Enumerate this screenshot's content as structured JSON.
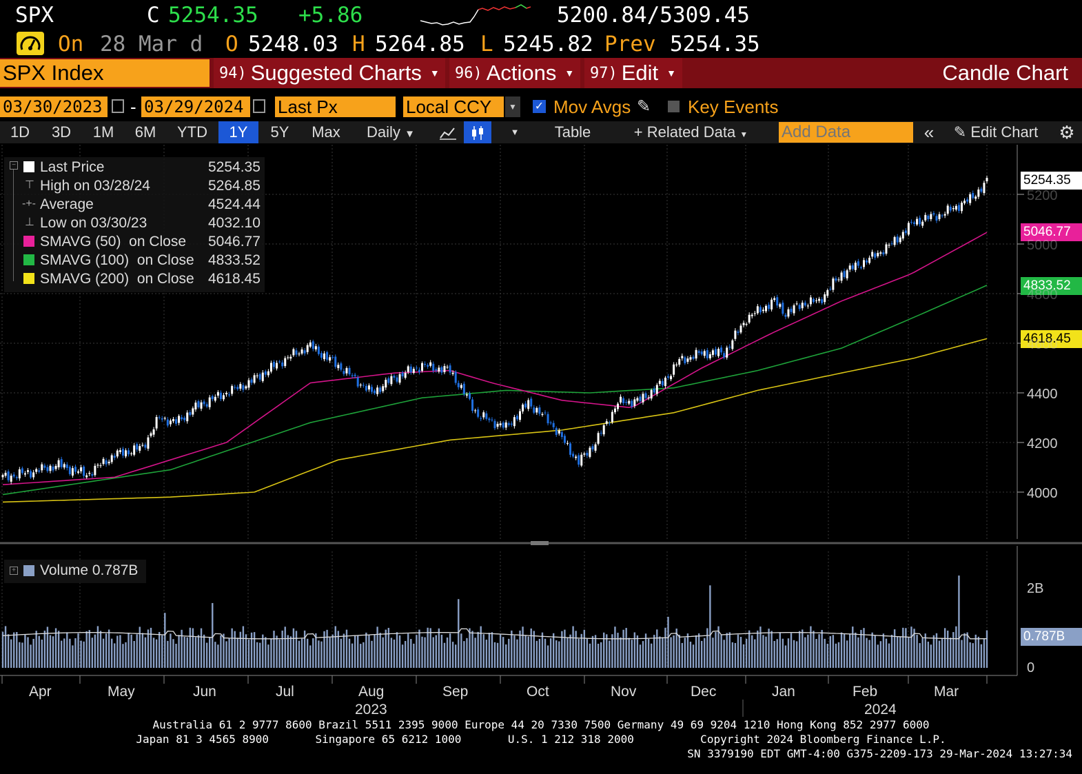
{
  "colors": {
    "up": "#ffffff",
    "down": "#1f6fe0",
    "sma50": "#d4148a",
    "sma100": "#1ea33a",
    "sma200": "#d9c414",
    "orange": "#f7a21b",
    "banner": "#7a0d14",
    "green": "#2ddf4b"
  },
  "header": {
    "ticker": "SPX",
    "c_label": "C",
    "price": "5254.35",
    "change": "+5.86",
    "range": "5200.84/5309.45",
    "line2": {
      "on": "On",
      "date": "28 Mar d",
      "o_label": "O",
      "o": "5248.03",
      "h_label": "H",
      "h": "5264.85",
      "l_label": "L",
      "l": "5245.82",
      "prev_label": "Prev",
      "prev": "5254.35"
    }
  },
  "menu": {
    "security": "SPX Index",
    "suggested_num": "94)",
    "suggested": "Suggested Charts",
    "actions_num": "96)",
    "actions": "Actions",
    "edit_num": "97)",
    "edit": "Edit",
    "chart_type": "Candle Chart"
  },
  "controls": {
    "start_date": "03/30/2023",
    "dash": "-",
    "end_date": "03/29/2024",
    "field": "Last Px",
    "currency": "Local CCY",
    "mov_avgs": "Mov Avgs",
    "key_events": "Key Events"
  },
  "toolbar": {
    "ranges": [
      "1D",
      "3D",
      "1M",
      "6M",
      "YTD",
      "1Y",
      "5Y",
      "Max"
    ],
    "selected": "1Y",
    "frequency": "Daily",
    "table": "Table",
    "related": "Related Data",
    "add_data_placeholder": "Add Data",
    "edit_chart": "Edit Chart"
  },
  "legend": [
    {
      "label": "Last Price",
      "value": "5254.35",
      "color": "#ffffff"
    },
    {
      "label": "High on 03/28/24",
      "value": "5264.85",
      "color": ""
    },
    {
      "label": "Average",
      "value": "4524.44",
      "color": ""
    },
    {
      "label": "Low on 03/30/23",
      "value": "4032.10",
      "color": ""
    },
    {
      "label": "SMAVG (50)  on Close",
      "value": "5046.77",
      "color": "#e8219a"
    },
    {
      "label": "SMAVG (100)  on Close",
      "value": "4833.52",
      "color": "#22b845"
    },
    {
      "label": "SMAVG (200)  on Close",
      "value": "4618.45",
      "color": "#f2e21a"
    }
  ],
  "volume_legend": "Volume 0.787B",
  "price_tags": {
    "last": "5254.35",
    "sma50": "5046.77",
    "sma100": "4833.52",
    "sma200": "4618.45",
    "volume": "0.787B"
  },
  "chart_data": {
    "type": "candlestick",
    "y_ticks": [
      "4000",
      "4200",
      "4400",
      "4600",
      "4800",
      "5000",
      "5200"
    ],
    "ylim": [
      3800,
      5380
    ],
    "volume_ticks": [
      "0",
      "2B"
    ],
    "volume_ylim": [
      0,
      2.8
    ],
    "x_months": [
      "Apr",
      "May",
      "Jun",
      "Jul",
      "Aug",
      "Sep",
      "Oct",
      "Nov",
      "Dec",
      "Jan",
      "Feb",
      "Mar"
    ],
    "x_years": [
      "2023",
      "2024"
    ],
    "close_anchors": [
      [
        0,
        4060
      ],
      [
        10,
        4080
      ],
      [
        20,
        4110
      ],
      [
        30,
        4070
      ],
      [
        40,
        4150
      ],
      [
        50,
        4180
      ],
      [
        56,
        4300
      ],
      [
        62,
        4280
      ],
      [
        70,
        4350
      ],
      [
        80,
        4400
      ],
      [
        88,
        4440
      ],
      [
        100,
        4530
      ],
      [
        110,
        4590
      ],
      [
        120,
        4510
      ],
      [
        132,
        4400
      ],
      [
        140,
        4460
      ],
      [
        150,
        4510
      ],
      [
        160,
        4490
      ],
      [
        170,
        4310
      ],
      [
        180,
        4260
      ],
      [
        188,
        4360
      ],
      [
        196,
        4280
      ],
      [
        206,
        4120
      ],
      [
        212,
        4200
      ],
      [
        220,
        4360
      ],
      [
        228,
        4370
      ],
      [
        236,
        4440
      ],
      [
        242,
        4530
      ],
      [
        250,
        4560
      ],
      [
        258,
        4560
      ],
      [
        266,
        4700
      ],
      [
        276,
        4770
      ],
      [
        280,
        4720
      ],
      [
        286,
        4760
      ],
      [
        292,
        4770
      ],
      [
        300,
        4880
      ],
      [
        310,
        4940
      ],
      [
        318,
        5000
      ],
      [
        326,
        5090
      ],
      [
        336,
        5120
      ],
      [
        346,
        5180
      ],
      [
        352,
        5250
      ]
    ],
    "sma50_anchors": [
      [
        0,
        4030
      ],
      [
        40,
        4060
      ],
      [
        80,
        4200
      ],
      [
        110,
        4440
      ],
      [
        140,
        4480
      ],
      [
        160,
        4490
      ],
      [
        175,
        4440
      ],
      [
        200,
        4370
      ],
      [
        225,
        4340
      ],
      [
        250,
        4500
      ],
      [
        275,
        4640
      ],
      [
        300,
        4770
      ],
      [
        325,
        4880
      ],
      [
        352,
        5046.77
      ]
    ],
    "sma100_anchors": [
      [
        0,
        3990
      ],
      [
        60,
        4090
      ],
      [
        110,
        4280
      ],
      [
        150,
        4380
      ],
      [
        180,
        4410
      ],
      [
        210,
        4400
      ],
      [
        240,
        4420
      ],
      [
        270,
        4490
      ],
      [
        300,
        4580
      ],
      [
        325,
        4700
      ],
      [
        352,
        4833.52
      ]
    ],
    "sma200_anchors": [
      [
        0,
        3960
      ],
      [
        60,
        3980
      ],
      [
        90,
        4000
      ],
      [
        120,
        4130
      ],
      [
        160,
        4210
      ],
      [
        200,
        4250
      ],
      [
        240,
        4320
      ],
      [
        270,
        4410
      ],
      [
        300,
        4480
      ],
      [
        326,
        4540
      ],
      [
        352,
        4618.45
      ]
    ],
    "volume_spikes": [
      [
        58,
        1.4
      ],
      [
        75,
        1.65
      ],
      [
        108,
        0.95
      ],
      [
        163,
        1.75
      ],
      [
        238,
        1.3
      ],
      [
        253,
        2.1
      ],
      [
        325,
        1.05
      ],
      [
        342,
        2.35
      ]
    ],
    "volume_base": 0.82
  },
  "footer": {
    "line1": "Australia 61 2 9777 8600 Brazil 5511 2395 9000 Europe 44 20 7330 7500 Germany 49 69 9204 1210 Hong Kong 852 2977 6000",
    "line2": "Japan 81 3 4565 8900       Singapore 65 6212 1000       U.S. 1 212 318 2000          Copyright 2024 Bloomberg Finance L.P.",
    "line3": "SN 3379190 EDT  GMT-4:00 G375-2209-173 29-Mar-2024 13:27:34"
  }
}
